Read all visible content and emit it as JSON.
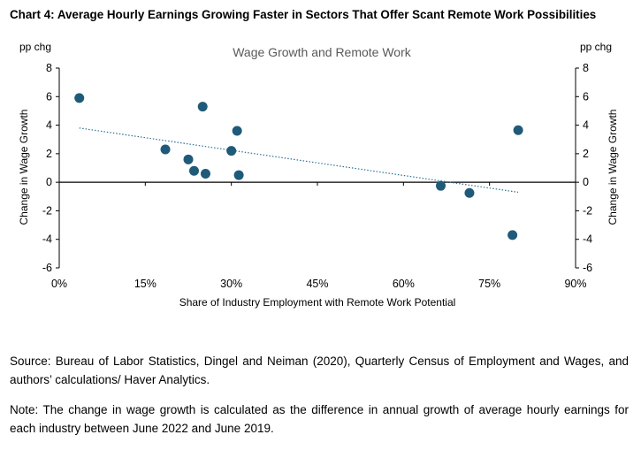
{
  "heading": "Chart 4: Average Hourly Earnings Growing Faster in Sectors That Offer Scant Remote Work Possibilities",
  "source": "Source: Bureau of Labor Statistics, Dingel and Neiman (2020), Quarterly Census of Employment and Wages, and authors’ calculations/ Haver Analytics.",
  "note": "Note: The change in wage growth is calculated as the difference in annual growth of average hourly earnings for each industry between June 2022 and June 2019.",
  "colors": {
    "point": "#1f5a79",
    "trend": "#2e6f95",
    "axis": "#000000",
    "title": "#595959"
  },
  "chart_data": {
    "type": "scatter",
    "title": "Wage Growth and Remote Work",
    "xlabel": "Share of Industry Employment with Remote Work Potential",
    "ylabel": "Change in Wage Growth",
    "y2label": "Change in Wage Growth",
    "y_unit_left": "pp chg",
    "y_unit_right": "pp chg",
    "xlim": [
      0,
      90
    ],
    "ylim": [
      -6,
      8
    ],
    "x_ticks": [
      "0%",
      "15%",
      "30%",
      "45%",
      "60%",
      "75%",
      "90%"
    ],
    "x_tick_values": [
      0,
      15,
      30,
      45,
      60,
      75,
      90
    ],
    "y_ticks": [
      "8",
      "6",
      "4",
      "2",
      "0",
      "-2",
      "-4",
      "-6"
    ],
    "y_tick_values": [
      8,
      6,
      4,
      2,
      0,
      -2,
      -4,
      -6
    ],
    "grid": false,
    "trendline": {
      "style": "dotted",
      "x": [
        3.5,
        80
      ],
      "y": [
        3.8,
        -0.7
      ]
    },
    "points": [
      {
        "x": 3.5,
        "y": 5.9
      },
      {
        "x": 18.5,
        "y": 2.3
      },
      {
        "x": 22.5,
        "y": 1.6
      },
      {
        "x": 23.5,
        "y": 0.8
      },
      {
        "x": 25.0,
        "y": 5.3
      },
      {
        "x": 25.5,
        "y": 0.6
      },
      {
        "x": 30.0,
        "y": 2.2
      },
      {
        "x": 31.0,
        "y": 3.6
      },
      {
        "x": 31.3,
        "y": 0.5
      },
      {
        "x": 66.5,
        "y": -0.25
      },
      {
        "x": 71.5,
        "y": -0.75
      },
      {
        "x": 79.0,
        "y": -3.7
      },
      {
        "x": 80.0,
        "y": 3.65
      }
    ]
  }
}
